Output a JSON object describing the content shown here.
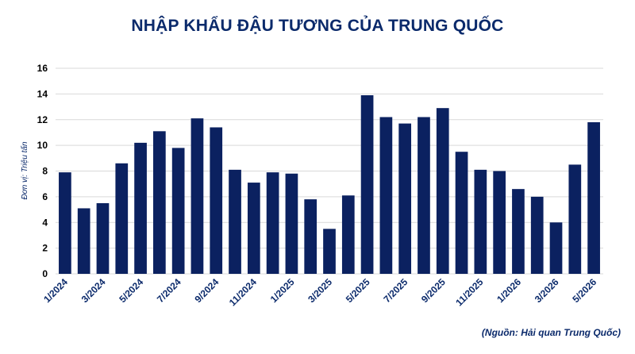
{
  "colors": {
    "bar": "#0b2160",
    "title": "#0b2a6b",
    "grid": "#d9d9d9"
  },
  "chart_data": {
    "type": "bar",
    "title": "NHẬP KHẨU ĐẬU TƯƠNG CỦA TRUNG QUỐC",
    "ylabel": "Đơn vị: Triệu tấn",
    "xlabel": "",
    "source": "(Nguồn: Hải quan Trung Quốc)",
    "ylim": [
      0,
      16
    ],
    "yticks": [
      0,
      2,
      4,
      6,
      8,
      10,
      12,
      14,
      16
    ],
    "grid": true,
    "categories": [
      "1/2024",
      "2/2024",
      "3/2024",
      "4/2024",
      "5/2024",
      "6/2024",
      "7/2024",
      "8/2024",
      "9/2024",
      "10/2024",
      "11/2024",
      "12/2024",
      "1/2025",
      "2/2025",
      "3/2025",
      "4/2025",
      "5/2025",
      "6/2025",
      "7/2025",
      "8/2025",
      "9/2025",
      "10/2025",
      "11/2025",
      "12/2025",
      "1/2026",
      "2/2026",
      "3/2026",
      "4/2026",
      "5/2026"
    ],
    "tick_labels": [
      "1/2024",
      "3/2024",
      "5/2024",
      "7/2024",
      "9/2024",
      "11/2024",
      "1/2025",
      "3/2025",
      "5/2025",
      "7/2025",
      "9/2025",
      "11/2025",
      "1/2026",
      "3/2026",
      "5/2026"
    ],
    "values": [
      7.9,
      5.1,
      5.5,
      8.6,
      10.2,
      11.1,
      9.8,
      12.1,
      11.4,
      8.1,
      7.1,
      7.9,
      7.8,
      5.8,
      3.5,
      6.1,
      13.9,
      12.2,
      11.7,
      12.2,
      12.9,
      9.5,
      8.1,
      8.0,
      6.6,
      6.0,
      4.0,
      8.5,
      11.8
    ]
  }
}
